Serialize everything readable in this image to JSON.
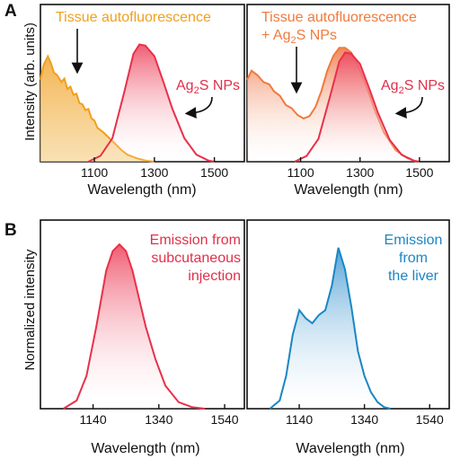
{
  "panel_labels": {
    "a": "A",
    "b": "B"
  },
  "colors": {
    "tissue": "#f0a01e",
    "np": "#e8304a",
    "combined": "#f07a3c",
    "liver": "#1a86c4",
    "text_orange": "#f0a01e",
    "text_red": "#e0304a",
    "text_combined": "#f07a3c",
    "text_blue": "#1a86c4"
  },
  "chart_data": [
    {
      "type": "area",
      "panel": "A-left",
      "xlabel": "Wavelength (nm)",
      "ylabel": "Intensity (arb. units)",
      "xlim": [
        920,
        1600
      ],
      "ylim": [
        0,
        1.05
      ],
      "xticks": [
        1100,
        1300,
        1500
      ],
      "annotations": {
        "tissue": "Tissue autofluorescence",
        "np_base": "Ag",
        "np_sub": "2",
        "np_tail": "S NPs"
      },
      "series": [
        {
          "key": "tissue",
          "x": [
            920,
            930,
            945,
            955,
            965,
            975,
            990,
            1000,
            1010,
            1020,
            1030,
            1040,
            1050,
            1060,
            1070,
            1080,
            1090,
            1100,
            1110,
            1130,
            1150,
            1170,
            1190,
            1210,
            1240,
            1270,
            1300
          ],
          "values": [
            0.7,
            0.82,
            0.9,
            0.84,
            0.76,
            0.74,
            0.68,
            0.71,
            0.62,
            0.64,
            0.57,
            0.58,
            0.5,
            0.49,
            0.44,
            0.45,
            0.37,
            0.35,
            0.29,
            0.25,
            0.2,
            0.15,
            0.1,
            0.06,
            0.03,
            0.01,
            0.0
          ]
        },
        {
          "key": "np",
          "x": [
            1080,
            1120,
            1160,
            1200,
            1230,
            1250,
            1270,
            1300,
            1330,
            1360,
            1400,
            1440,
            1480,
            1500
          ],
          "values": [
            0.0,
            0.05,
            0.2,
            0.6,
            0.92,
            1.0,
            0.99,
            0.9,
            0.68,
            0.45,
            0.2,
            0.06,
            0.01,
            0.0
          ]
        }
      ]
    },
    {
      "type": "area",
      "panel": "A-right",
      "xlabel": "Wavelength (nm)",
      "ylabel": "",
      "xlim": [
        920,
        1600
      ],
      "ylim": [
        0,
        1.05
      ],
      "xticks": [
        1100,
        1300,
        1500
      ],
      "annotations": {
        "combined_line1": "Tissue autofluorescence",
        "combined_plus": "+ Ag",
        "combined_sub": "2",
        "combined_tail": "S NPs",
        "np_base": "Ag",
        "np_sub": "2",
        "np_tail": "S NPs"
      },
      "series": [
        {
          "key": "combined",
          "x": [
            920,
            935,
            955,
            975,
            995,
            1010,
            1030,
            1050,
            1070,
            1090,
            1110,
            1130,
            1150,
            1170,
            1190,
            1210,
            1230,
            1250,
            1270,
            1290,
            1310,
            1330,
            1350,
            1380,
            1420,
            1460,
            1490
          ],
          "values": [
            0.72,
            0.8,
            0.76,
            0.7,
            0.68,
            0.62,
            0.58,
            0.5,
            0.47,
            0.41,
            0.38,
            0.4,
            0.48,
            0.62,
            0.8,
            0.93,
            1.0,
            1.0,
            0.96,
            0.86,
            0.74,
            0.6,
            0.45,
            0.26,
            0.1,
            0.03,
            0.0
          ]
        },
        {
          "key": "np",
          "x": [
            1080,
            1120,
            1160,
            1200,
            1230,
            1250,
            1270,
            1300,
            1330,
            1360,
            1400,
            1440,
            1480,
            1500
          ],
          "values": [
            0.0,
            0.05,
            0.2,
            0.58,
            0.88,
            0.96,
            0.95,
            0.86,
            0.65,
            0.43,
            0.19,
            0.06,
            0.01,
            0.0
          ]
        }
      ]
    },
    {
      "type": "area",
      "panel": "B-left",
      "xlabel": "Wavelength (nm)",
      "ylabel": "Normalized intensity",
      "xlim": [
        980,
        1600
      ],
      "ylim": [
        0,
        1.05
      ],
      "xticks": [
        1140,
        1340,
        1540
      ],
      "annotations": {
        "line1": "Emission from",
        "line2": "subcutaneous",
        "line3": "injection"
      },
      "series": [
        {
          "key": "np",
          "x": [
            1050,
            1090,
            1120,
            1150,
            1180,
            1200,
            1220,
            1240,
            1260,
            1280,
            1300,
            1330,
            1360,
            1400,
            1440,
            1480
          ],
          "values": [
            0.0,
            0.05,
            0.2,
            0.5,
            0.84,
            0.96,
            1.0,
            0.96,
            0.84,
            0.67,
            0.5,
            0.3,
            0.14,
            0.04,
            0.01,
            0.0
          ]
        }
      ]
    },
    {
      "type": "area",
      "panel": "B-right",
      "xlabel": "Wavelength (nm)",
      "ylabel": "",
      "xlim": [
        980,
        1600
      ],
      "ylim": [
        0,
        1.05
      ],
      "xticks": [
        1140,
        1340,
        1540
      ],
      "annotations": {
        "line1": "Emission",
        "line2": "from",
        "line3": "the liver"
      },
      "series": [
        {
          "key": "liver",
          "x": [
            1050,
            1080,
            1100,
            1120,
            1140,
            1160,
            1180,
            1200,
            1220,
            1240,
            1260,
            1280,
            1300,
            1320,
            1340,
            1360,
            1380,
            1400,
            1420
          ],
          "values": [
            0.0,
            0.05,
            0.2,
            0.45,
            0.6,
            0.55,
            0.52,
            0.57,
            0.6,
            0.75,
            0.98,
            0.85,
            0.62,
            0.35,
            0.2,
            0.1,
            0.04,
            0.01,
            0.0
          ]
        }
      ]
    }
  ]
}
